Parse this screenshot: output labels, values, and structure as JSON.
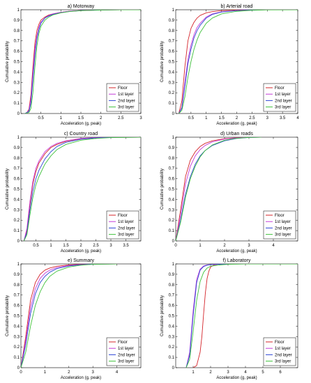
{
  "colors": {
    "Floor": "#d4242a",
    "1st layer": "#c43bd8",
    "2nd layer": "#2e46d6",
    "3rd layer": "#40c23c"
  },
  "legend_labels": [
    "Floor",
    "1st layer",
    "2nd layer",
    "3rd layer"
  ],
  "chart_data": [
    {
      "type": "line",
      "title": "a) Motorway",
      "xlabel": "Acceleration (g, peak)",
      "ylabel": "Cumulative probability",
      "xlim": [
        0,
        3
      ],
      "ylim": [
        0,
        1
      ],
      "xticks": [
        0.5,
        1,
        1.5,
        2,
        2.5,
        3
      ],
      "xtick_labels": [
        "0.5",
        "1",
        "1.5",
        "2",
        "2.5",
        "3"
      ],
      "yticks": [
        0,
        0.1,
        0.2,
        0.3,
        0.4,
        0.5,
        0.6,
        0.7,
        0.8,
        0.9,
        1
      ],
      "ytick_labels": [
        "0",
        "0.1",
        "0.2",
        "0.3",
        "0.4",
        "0.5",
        "0.6",
        "0.7",
        "0.8",
        "0.9",
        "1"
      ],
      "legend_position": "bottom-right",
      "series": [
        {
          "name": "Floor",
          "x": [
            0.1,
            0.15,
            0.2,
            0.25,
            0.3,
            0.35,
            0.4,
            0.45,
            0.5,
            0.6,
            0.7,
            0.8,
            1.0,
            1.2,
            1.5,
            2.0,
            2.5,
            3.0
          ],
          "y": [
            0,
            0.01,
            0.04,
            0.18,
            0.45,
            0.68,
            0.8,
            0.86,
            0.9,
            0.93,
            0.95,
            0.96,
            0.975,
            0.985,
            0.993,
            0.998,
            1,
            1
          ]
        },
        {
          "name": "1st layer",
          "x": [
            0.1,
            0.15,
            0.2,
            0.25,
            0.3,
            0.35,
            0.4,
            0.45,
            0.5,
            0.6,
            0.7,
            0.8,
            1.0,
            1.2,
            1.5,
            2.0,
            2.5,
            3.0
          ],
          "y": [
            0,
            0.01,
            0.03,
            0.14,
            0.4,
            0.62,
            0.75,
            0.83,
            0.88,
            0.92,
            0.945,
            0.96,
            0.975,
            0.985,
            0.993,
            0.998,
            1,
            1
          ]
        },
        {
          "name": "2nd layer",
          "x": [
            0.1,
            0.15,
            0.2,
            0.25,
            0.3,
            0.35,
            0.4,
            0.45,
            0.5,
            0.6,
            0.7,
            0.8,
            1.0,
            1.2,
            1.5,
            2.0,
            2.5,
            3.0
          ],
          "y": [
            0,
            0.01,
            0.02,
            0.1,
            0.33,
            0.56,
            0.72,
            0.81,
            0.87,
            0.92,
            0.94,
            0.955,
            0.972,
            0.983,
            0.992,
            0.998,
            1,
            1
          ]
        },
        {
          "name": "3rd layer",
          "x": [
            0.1,
            0.15,
            0.2,
            0.25,
            0.3,
            0.35,
            0.4,
            0.45,
            0.5,
            0.6,
            0.7,
            0.8,
            1.0,
            1.2,
            1.5,
            2.0,
            2.5,
            3.0
          ],
          "y": [
            0,
            0.005,
            0.01,
            0.05,
            0.2,
            0.45,
            0.65,
            0.77,
            0.84,
            0.9,
            0.93,
            0.95,
            0.97,
            0.982,
            0.991,
            0.997,
            1,
            1
          ]
        }
      ]
    },
    {
      "type": "line",
      "title": "b) Arterial road",
      "xlabel": "Acceleration (g, peak)",
      "ylabel": "Cumulative probability",
      "xlim": [
        0,
        4
      ],
      "ylim": [
        0,
        1
      ],
      "xticks": [
        0.5,
        1,
        1.5,
        2,
        2.5,
        3,
        3.5,
        4
      ],
      "xtick_labels": [
        "0.5",
        "1",
        "1.5",
        "2",
        "2.5",
        "3",
        "3.5",
        "4"
      ],
      "yticks": [
        0,
        0.1,
        0.2,
        0.3,
        0.4,
        0.5,
        0.6,
        0.7,
        0.8,
        0.9,
        1
      ],
      "ytick_labels": [
        "0",
        "0.1",
        "0.2",
        "0.3",
        "0.4",
        "0.5",
        "0.6",
        "0.7",
        "0.8",
        "0.9",
        "1"
      ],
      "legend_position": "bottom-right",
      "series": [
        {
          "name": "Floor",
          "x": [
            0.1,
            0.2,
            0.3,
            0.4,
            0.5,
            0.6,
            0.7,
            0.8,
            1.0,
            1.2,
            1.5,
            2.0,
            2.5,
            3.0,
            4.0
          ],
          "y": [
            0,
            0.12,
            0.45,
            0.7,
            0.82,
            0.88,
            0.92,
            0.945,
            0.97,
            0.982,
            0.992,
            0.997,
            0.999,
            1,
            1
          ]
        },
        {
          "name": "1st layer",
          "x": [
            0.1,
            0.2,
            0.3,
            0.4,
            0.5,
            0.6,
            0.7,
            0.8,
            1.0,
            1.2,
            1.5,
            2.0,
            2.5,
            3.0,
            4.0
          ],
          "y": [
            0,
            0.06,
            0.3,
            0.52,
            0.66,
            0.76,
            0.83,
            0.87,
            0.93,
            0.96,
            0.98,
            0.993,
            0.998,
            1,
            1
          ]
        },
        {
          "name": "2nd layer",
          "x": [
            0.1,
            0.2,
            0.3,
            0.4,
            0.5,
            0.6,
            0.7,
            0.8,
            1.0,
            1.2,
            1.5,
            2.0,
            2.5,
            3.0,
            4.0
          ],
          "y": [
            0,
            0.05,
            0.26,
            0.48,
            0.62,
            0.73,
            0.8,
            0.85,
            0.92,
            0.955,
            0.978,
            0.992,
            0.997,
            1,
            1
          ]
        },
        {
          "name": "3rd layer",
          "x": [
            0.1,
            0.2,
            0.3,
            0.4,
            0.5,
            0.6,
            0.7,
            0.8,
            1.0,
            1.2,
            1.5,
            2.0,
            2.5,
            3.0,
            4.0
          ],
          "y": [
            0,
            0.03,
            0.16,
            0.35,
            0.5,
            0.62,
            0.71,
            0.78,
            0.87,
            0.92,
            0.96,
            0.985,
            0.995,
            0.999,
            1
          ]
        }
      ]
    },
    {
      "type": "line",
      "title": "c) Country road",
      "xlabel": "Acceleration (g, peak)",
      "ylabel": "Cumulative probability",
      "xlim": [
        0,
        4
      ],
      "ylim": [
        0,
        1
      ],
      "xticks": [
        0.5,
        1,
        1.5,
        2,
        2.5,
        3,
        3.5
      ],
      "xtick_labels": [
        "0.5",
        "1",
        "1.5",
        "2",
        "2.5",
        "3",
        "3.5"
      ],
      "yticks": [
        0,
        0.1,
        0.2,
        0.3,
        0.4,
        0.5,
        0.6,
        0.7,
        0.8,
        0.9,
        1
      ],
      "ytick_labels": [
        "0",
        "0.1",
        "0.2",
        "0.3",
        "0.4",
        "0.5",
        "0.6",
        "0.7",
        "0.8",
        "0.9",
        "1"
      ],
      "legend_position": "bottom-right",
      "series": [
        {
          "name": "Floor",
          "x": [
            0.1,
            0.2,
            0.3,
            0.4,
            0.5,
            0.6,
            0.8,
            1.0,
            1.2,
            1.5,
            2.0,
            2.5,
            3.0,
            4.0
          ],
          "y": [
            0,
            0.1,
            0.35,
            0.55,
            0.67,
            0.75,
            0.84,
            0.9,
            0.93,
            0.96,
            0.985,
            0.995,
            0.999,
            1
          ]
        },
        {
          "name": "1st layer",
          "x": [
            0.1,
            0.2,
            0.3,
            0.4,
            0.5,
            0.6,
            0.8,
            1.0,
            1.2,
            1.5,
            2.0,
            2.5,
            3.0,
            4.0
          ],
          "y": [
            0,
            0.12,
            0.38,
            0.58,
            0.7,
            0.77,
            0.86,
            0.91,
            0.94,
            0.965,
            0.988,
            0.996,
            0.999,
            1
          ]
        },
        {
          "name": "2nd layer",
          "x": [
            0.1,
            0.2,
            0.3,
            0.4,
            0.5,
            0.6,
            0.8,
            1.0,
            1.2,
            1.5,
            2.0,
            2.5,
            3.0,
            4.0
          ],
          "y": [
            0,
            0.08,
            0.3,
            0.48,
            0.6,
            0.68,
            0.79,
            0.86,
            0.91,
            0.95,
            0.98,
            0.993,
            0.998,
            1
          ]
        },
        {
          "name": "3rd layer",
          "x": [
            0.1,
            0.2,
            0.3,
            0.4,
            0.5,
            0.6,
            0.8,
            1.0,
            1.2,
            1.5,
            2.0,
            2.5,
            3.0,
            4.0
          ],
          "y": [
            0,
            0.06,
            0.25,
            0.42,
            0.54,
            0.62,
            0.74,
            0.82,
            0.88,
            0.93,
            0.97,
            0.988,
            0.996,
            1
          ]
        }
      ]
    },
    {
      "type": "line",
      "title": "d) Urban roads",
      "xlabel": "Acceleration (g, peak)",
      "ylabel": "Cumulative probability",
      "xlim": [
        0,
        5
      ],
      "ylim": [
        0,
        1
      ],
      "xticks": [
        0,
        1,
        2,
        3,
        4
      ],
      "xtick_labels": [
        "0",
        "1",
        "2",
        "3",
        "4"
      ],
      "yticks": [
        0,
        0.1,
        0.2,
        0.3,
        0.4,
        0.5,
        0.6,
        0.7,
        0.8,
        0.9,
        1
      ],
      "ytick_labels": [
        "0",
        "0.1",
        "0.2",
        "0.3",
        "0.4",
        "0.5",
        "0.6",
        "0.7",
        "0.8",
        "0.9",
        "1"
      ],
      "legend_position": "bottom-right",
      "series": [
        {
          "name": "Floor",
          "x": [
            0,
            0.2,
            0.4,
            0.6,
            0.8,
            1.0,
            1.2,
            1.5,
            2.0,
            2.5,
            3.0,
            3.5
          ],
          "y": [
            0,
            0.3,
            0.62,
            0.78,
            0.86,
            0.91,
            0.94,
            0.965,
            0.985,
            0.995,
            0.999,
            1
          ]
        },
        {
          "name": "1st layer",
          "x": [
            0,
            0.2,
            0.4,
            0.6,
            0.8,
            1.0,
            1.2,
            1.5,
            2.0,
            2.5,
            3.0,
            3.5
          ],
          "y": [
            0,
            0.25,
            0.55,
            0.72,
            0.82,
            0.88,
            0.92,
            0.955,
            0.982,
            0.994,
            0.999,
            1
          ]
        },
        {
          "name": "2nd layer",
          "x": [
            0,
            0.2,
            0.4,
            0.6,
            0.8,
            1.0,
            1.2,
            1.5,
            2.0,
            2.5,
            3.0,
            3.5
          ],
          "y": [
            0,
            0.2,
            0.45,
            0.62,
            0.74,
            0.82,
            0.87,
            0.92,
            0.965,
            0.988,
            0.997,
            1
          ]
        },
        {
          "name": "3rd layer",
          "x": [
            0,
            0.2,
            0.4,
            0.6,
            0.8,
            1.0,
            1.2,
            1.5,
            2.0,
            2.5,
            3.0,
            3.5
          ],
          "y": [
            0,
            0.18,
            0.42,
            0.6,
            0.72,
            0.81,
            0.87,
            0.925,
            0.97,
            0.99,
            0.998,
            1
          ]
        }
      ]
    },
    {
      "type": "line",
      "title": "e) Summary",
      "xlabel": "Acceleration (g, peak)",
      "ylabel": "Cumulative probability",
      "xlim": [
        0,
        5
      ],
      "ylim": [
        0,
        1
      ],
      "xticks": [
        0,
        1,
        2,
        3,
        4
      ],
      "xtick_labels": [
        "0",
        "1",
        "2",
        "3",
        "4"
      ],
      "yticks": [
        0,
        0.1,
        0.2,
        0.3,
        0.4,
        0.5,
        0.6,
        0.7,
        0.8,
        0.9,
        1
      ],
      "ytick_labels": [
        "0",
        "0.1",
        "0.2",
        "0.3",
        "0.4",
        "0.5",
        "0.6",
        "0.7",
        "0.8",
        "0.9",
        "1"
      ],
      "legend_position": "bottom-right",
      "series": [
        {
          "name": "Floor",
          "x": [
            0,
            0.2,
            0.4,
            0.6,
            0.8,
            1.0,
            1.2,
            1.5,
            2.0,
            2.5,
            3.0,
            4.0
          ],
          "y": [
            0,
            0.3,
            0.65,
            0.82,
            0.9,
            0.94,
            0.96,
            0.978,
            0.99,
            0.996,
            0.999,
            1
          ]
        },
        {
          "name": "1st layer",
          "x": [
            0,
            0.2,
            0.4,
            0.6,
            0.8,
            1.0,
            1.2,
            1.5,
            2.0,
            2.5,
            3.0,
            4.0
          ],
          "y": [
            0,
            0.26,
            0.58,
            0.76,
            0.86,
            0.91,
            0.94,
            0.965,
            0.985,
            0.994,
            0.998,
            1
          ]
        },
        {
          "name": "2nd layer",
          "x": [
            0,
            0.2,
            0.4,
            0.6,
            0.8,
            1.0,
            1.2,
            1.5,
            2.0,
            2.5,
            3.0,
            4.0
          ],
          "y": [
            0,
            0.22,
            0.52,
            0.71,
            0.82,
            0.88,
            0.92,
            0.955,
            0.98,
            0.992,
            0.998,
            1
          ]
        },
        {
          "name": "3rd layer",
          "x": [
            0,
            0.2,
            0.4,
            0.6,
            0.8,
            1.0,
            1.2,
            1.5,
            2.0,
            2.5,
            3.0,
            4.0
          ],
          "y": [
            0,
            0.15,
            0.4,
            0.6,
            0.73,
            0.82,
            0.88,
            0.93,
            0.97,
            0.988,
            0.996,
            1
          ]
        }
      ]
    },
    {
      "type": "line",
      "title": "f) Laboratory",
      "xlabel": "Acceleration (g, peak)",
      "ylabel": "Cumulative probability",
      "xlim": [
        0,
        7
      ],
      "ylim": [
        0,
        1
      ],
      "xticks": [
        1,
        2,
        3,
        4,
        5,
        6
      ],
      "xtick_labels": [
        "1",
        "2",
        "3",
        "4",
        "5",
        "6"
      ],
      "yticks": [
        0,
        0.1,
        0.2,
        0.3,
        0.4,
        0.5,
        0.6,
        0.7,
        0.8,
        0.9,
        1
      ],
      "ytick_labels": [
        "0",
        "0.1",
        "0.2",
        "0.3",
        "0.4",
        "0.5",
        "0.6",
        "0.7",
        "0.8",
        "0.9",
        "1"
      ],
      "legend_position": "bottom-right",
      "series": [
        {
          "name": "Floor",
          "x": [
            1.0,
            1.2,
            1.4,
            1.5,
            1.6,
            1.7,
            1.8,
            1.9,
            2.0,
            2.2,
            2.5,
            3.0,
            7.0
          ],
          "y": [
            0,
            0.02,
            0.15,
            0.3,
            0.52,
            0.72,
            0.86,
            0.93,
            0.97,
            0.99,
            0.998,
            1,
            1
          ]
        },
        {
          "name": "1st layer",
          "x": [
            0.6,
            0.8,
            1.0,
            1.2,
            1.4,
            1.6,
            1.8,
            2.0,
            2.5,
            3.0,
            4.0,
            7.0
          ],
          "y": [
            0,
            0.15,
            0.55,
            0.85,
            0.95,
            0.98,
            0.99,
            0.994,
            0.998,
            1,
            1,
            1
          ]
        },
        {
          "name": "2nd layer",
          "x": [
            0.6,
            0.8,
            1.0,
            1.2,
            1.4,
            1.6,
            1.8,
            2.0,
            2.5,
            3.0,
            4.0,
            7.0
          ],
          "y": [
            0,
            0.12,
            0.5,
            0.82,
            0.94,
            0.975,
            0.988,
            0.993,
            0.997,
            0.999,
            1,
            1
          ]
        },
        {
          "name": "3rd layer",
          "x": [
            0.6,
            0.8,
            1.0,
            1.2,
            1.4,
            1.6,
            1.8,
            2.0,
            2.5,
            3.0,
            4.0,
            7.0
          ],
          "y": [
            0,
            0.08,
            0.35,
            0.65,
            0.83,
            0.92,
            0.96,
            0.978,
            0.99,
            0.996,
            1,
            1
          ]
        }
      ]
    }
  ]
}
